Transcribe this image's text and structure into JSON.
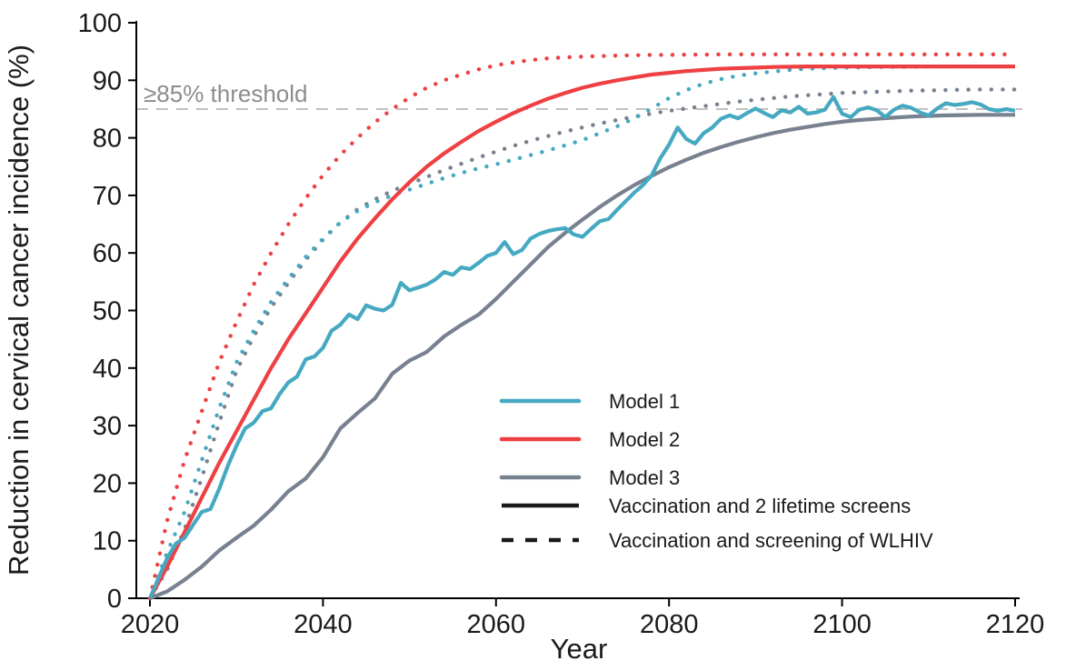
{
  "page": {
    "background": "#ffffff"
  },
  "colors": {
    "model1": "#45A9C1",
    "model2": "#EE4043",
    "model3": "#78818F",
    "legend_black": "#1a1a1a",
    "threshold_line": "#bdbdbd",
    "threshold_text": "#8c8c8c",
    "axis": "#000000",
    "tick_text": "#1a1a1a"
  },
  "chart_data": {
    "type": "line",
    "title": "",
    "xlabel": "Year",
    "ylabel": "Reduction in cervical cancer incidence (%)",
    "xlim": [
      2020,
      2120
    ],
    "ylim": [
      0,
      100
    ],
    "xticks": [
      2020,
      2040,
      2060,
      2080,
      2100,
      2120
    ],
    "yticks": [
      0,
      10,
      20,
      30,
      40,
      50,
      60,
      70,
      80,
      90,
      100
    ],
    "grid": false,
    "legend_position": "inside-lower-right",
    "threshold": {
      "value": 85,
      "label": "≥85% threshold"
    },
    "series": [
      {
        "id": "model3-dotted",
        "model": "Model 3",
        "scenario": "Vaccination and screening of WLHIV",
        "color_key": "model3",
        "linestyle": "dotted",
        "x": [
          2020,
          2022,
          2024,
          2026,
          2028,
          2030,
          2032,
          2034,
          2036,
          2038,
          2040,
          2042,
          2044,
          2046,
          2048,
          2050,
          2052,
          2054,
          2056,
          2058,
          2060,
          2062,
          2064,
          2066,
          2068,
          2070,
          2072,
          2074,
          2076,
          2078,
          2080,
          2082,
          2084,
          2086,
          2088,
          2090,
          2092,
          2094,
          2096,
          2098,
          2100,
          2102,
          2104,
          2106,
          2108,
          2110,
          2112,
          2114,
          2116,
          2118,
          2120
        ],
        "y": [
          0,
          5,
          12,
          21,
          30.5,
          39.5,
          45.5,
          50.5,
          54.8,
          58.8,
          62.3,
          65.3,
          67.6,
          69.3,
          70.8,
          72,
          73.2,
          74.4,
          75.5,
          76.6,
          77.6,
          78.6,
          79.5,
          80.3,
          81.1,
          81.8,
          82.5,
          83.1,
          83.7,
          84.2,
          84.7,
          85.1,
          85.5,
          85.9,
          86.3,
          86.6,
          86.9,
          87.2,
          87.4,
          87.6,
          87.8,
          87.9,
          88,
          88.1,
          88.2,
          88.25,
          88.3,
          88.35,
          88.4,
          88.4,
          88.4
        ]
      },
      {
        "id": "model1-dotted",
        "model": "Model 1",
        "scenario": "Vaccination and screening of WLHIV",
        "color_key": "model1",
        "linestyle": "dotted",
        "x": [
          2020,
          2022,
          2024,
          2026,
          2028,
          2030,
          2032,
          2034,
          2036,
          2038,
          2040,
          2042,
          2044,
          2046,
          2048,
          2050,
          2052,
          2054,
          2056,
          2058,
          2060,
          2062,
          2064,
          2066,
          2068,
          2070,
          2072,
          2074,
          2076,
          2078,
          2080,
          2082,
          2084,
          2086,
          2088,
          2090,
          2092,
          2094,
          2096,
          2098,
          2100,
          2102,
          2104,
          2106,
          2108,
          2110,
          2112,
          2114,
          2116,
          2118,
          2120
        ],
        "y": [
          0,
          8,
          15,
          24,
          33,
          41,
          46.5,
          51.5,
          55.5,
          59.3,
          62.5,
          65.3,
          67.3,
          68.8,
          70,
          71,
          72,
          73,
          73.9,
          74.7,
          75.4,
          76.2,
          77,
          77.8,
          78.7,
          79.6,
          80.8,
          82,
          83.4,
          85.1,
          86.9,
          88.3,
          89.4,
          90.2,
          90.8,
          91.2,
          91.5,
          91.8,
          92,
          92.1,
          92.2,
          92.25,
          92.3,
          92.3,
          92.35,
          92.4,
          92.4,
          92.4,
          92.4,
          92.4,
          92.4
        ]
      },
      {
        "id": "model2-dotted",
        "model": "Model 2",
        "scenario": "Vaccination and screening of WLHIV",
        "color_key": "model2",
        "linestyle": "dotted",
        "x": [
          2020,
          2022,
          2024,
          2026,
          2028,
          2030,
          2032,
          2034,
          2036,
          2038,
          2040,
          2042,
          2044,
          2046,
          2048,
          2050,
          2052,
          2054,
          2056,
          2058,
          2060,
          2062,
          2064,
          2066,
          2068,
          2070,
          2072,
          2074,
          2076,
          2078,
          2080,
          2082,
          2084,
          2086,
          2088,
          2090,
          2092,
          2094,
          2096,
          2098,
          2100,
          2102,
          2104,
          2106,
          2108,
          2110,
          2112,
          2114,
          2116,
          2118,
          2120
        ],
        "y": [
          0,
          13.5,
          24,
          32.5,
          41,
          48,
          54.5,
          60,
          65,
          69.5,
          73.5,
          77,
          80,
          82.7,
          85,
          87,
          88.7,
          90,
          91,
          91.9,
          92.6,
          93.1,
          93.5,
          93.8,
          94,
          94.1,
          94.2,
          94.3,
          94.35,
          94.4,
          94.4,
          94.45,
          94.45,
          94.5,
          94.5,
          94.5,
          94.5,
          94.5,
          94.5,
          94.5,
          94.5,
          94.5,
          94.5,
          94.5,
          94.5,
          94.5,
          94.5,
          94.5,
          94.5,
          94.5,
          94.5
        ]
      },
      {
        "id": "model3-solid",
        "model": "Model 3",
        "scenario": "Vaccination and 2 lifetime screens",
        "color_key": "model3",
        "linestyle": "solid",
        "x": [
          2020,
          2022,
          2024,
          2026,
          2028,
          2030,
          2032,
          2034,
          2036,
          2038,
          2040,
          2042,
          2044,
          2046,
          2048,
          2050,
          2052,
          2054,
          2056,
          2058,
          2060,
          2062,
          2064,
          2066,
          2068,
          2070,
          2072,
          2074,
          2076,
          2078,
          2080,
          2082,
          2084,
          2086,
          2088,
          2090,
          2092,
          2094,
          2096,
          2098,
          2100,
          2102,
          2104,
          2106,
          2108,
          2110,
          2112,
          2114,
          2116,
          2118,
          2120
        ],
        "y": [
          0,
          1.2,
          3.2,
          5.5,
          8.3,
          10.5,
          12.6,
          15.4,
          18.6,
          20.8,
          24.5,
          29.5,
          32.2,
          34.7,
          39,
          41.3,
          42.8,
          45.5,
          47.5,
          49.3,
          52,
          55,
          58,
          61,
          63.5,
          65.8,
          68,
          70,
          71.8,
          73.4,
          74.9,
          76.2,
          77.4,
          78.4,
          79.3,
          80.1,
          80.8,
          81.4,
          81.9,
          82.4,
          82.8,
          83.1,
          83.3,
          83.5,
          83.7,
          83.8,
          83.9,
          83.95,
          84,
          84,
          84
        ]
      },
      {
        "id": "model2-solid",
        "model": "Model 2",
        "scenario": "Vaccination and 2 lifetime screens",
        "color_key": "model2",
        "linestyle": "solid",
        "x": [
          2020,
          2022,
          2024,
          2026,
          2028,
          2030,
          2032,
          2034,
          2036,
          2038,
          2040,
          2042,
          2044,
          2046,
          2048,
          2050,
          2052,
          2054,
          2056,
          2058,
          2060,
          2062,
          2064,
          2066,
          2068,
          2070,
          2072,
          2074,
          2076,
          2078,
          2080,
          2082,
          2084,
          2086,
          2088,
          2090,
          2092,
          2094,
          2096,
          2098,
          2100,
          2102,
          2104,
          2106,
          2108,
          2110,
          2112,
          2114,
          2116,
          2118,
          2120
        ],
        "y": [
          0,
          5.5,
          11.5,
          17.5,
          23.5,
          29,
          34.5,
          40,
          45,
          49.5,
          54,
          58.5,
          62.5,
          66,
          69.3,
          72.3,
          75,
          77.3,
          79.3,
          81.2,
          82.8,
          84.3,
          85.6,
          86.8,
          87.8,
          88.7,
          89.4,
          90,
          90.5,
          91,
          91.3,
          91.6,
          91.8,
          92,
          92.1,
          92.2,
          92.3,
          92.35,
          92.4,
          92.4,
          92.4,
          92.4,
          92.4,
          92.4,
          92.4,
          92.4,
          92.4,
          92.4,
          92.4,
          92.4,
          92.4
        ]
      },
      {
        "id": "model1-solid",
        "model": "Model 1",
        "scenario": "Vaccination and 2 lifetime screens",
        "color_key": "model1",
        "linestyle": "solid",
        "x": [
          2020,
          2021,
          2022,
          2023,
          2024,
          2025,
          2026,
          2027,
          2028,
          2029,
          2030,
          2031,
          2032,
          2033,
          2034,
          2035,
          2036,
          2037,
          2038,
          2039,
          2040,
          2041,
          2042,
          2043,
          2044,
          2045,
          2046,
          2047,
          2048,
          2049,
          2050,
          2051,
          2052,
          2053,
          2054,
          2055,
          2056,
          2057,
          2058,
          2059,
          2060,
          2061,
          2062,
          2063,
          2064,
          2065,
          2066,
          2067,
          2068,
          2069,
          2070,
          2071,
          2072,
          2073,
          2074,
          2075,
          2076,
          2077,
          2078,
          2079,
          2080,
          2081,
          2082,
          2083,
          2084,
          2085,
          2086,
          2087,
          2088,
          2089,
          2090,
          2091,
          2092,
          2093,
          2094,
          2095,
          2096,
          2097,
          2098,
          2099,
          2100,
          2101,
          2102,
          2103,
          2104,
          2105,
          2106,
          2107,
          2108,
          2109,
          2110,
          2111,
          2112,
          2113,
          2114,
          2115,
          2116,
          2117,
          2118,
          2119,
          2120
        ],
        "y": [
          0,
          3.5,
          7,
          9.5,
          10.5,
          12.8,
          15,
          15.5,
          19,
          23,
          26.5,
          29.5,
          30.5,
          32.5,
          33,
          35.5,
          37.5,
          38.5,
          41.5,
          42,
          43.5,
          46.5,
          47.5,
          49.3,
          48.5,
          50.9,
          50.3,
          50,
          51,
          54.8,
          53.5,
          54,
          54.5,
          55.4,
          56.7,
          56.2,
          57.5,
          57.2,
          58.3,
          59.5,
          60,
          61.9,
          59.8,
          60.5,
          62.5,
          63.3,
          63.8,
          64.1,
          64.3,
          63.2,
          62.8,
          64.2,
          65.5,
          65.9,
          67.5,
          69,
          70.5,
          71.8,
          73.5,
          76.5,
          78.8,
          81.8,
          79.8,
          79,
          80.8,
          81.8,
          83.3,
          83.9,
          83.4,
          84.3,
          85.1,
          84.3,
          83.6,
          84.8,
          84.4,
          85.4,
          84.2,
          84.4,
          84.9,
          87.1,
          84.2,
          83.6,
          84.9,
          85.3,
          84.8,
          83.6,
          84.9,
          85.6,
          85.2,
          84.4,
          83.9,
          85.1,
          86,
          85.7,
          85.9,
          86.2,
          85.8,
          85,
          84.7,
          85,
          84.7
        ]
      }
    ]
  },
  "legend": {
    "models": [
      {
        "label": "Model 1",
        "color_key": "model1"
      },
      {
        "label": "Model 2",
        "color_key": "model2"
      },
      {
        "label": "Model 3",
        "color_key": "model3"
      }
    ],
    "linetypes": [
      {
        "label": "Vaccination and 2 lifetime screens",
        "style": "solid"
      },
      {
        "label": "Vaccination and screening of WLHIV",
        "style": "dotted"
      }
    ]
  }
}
